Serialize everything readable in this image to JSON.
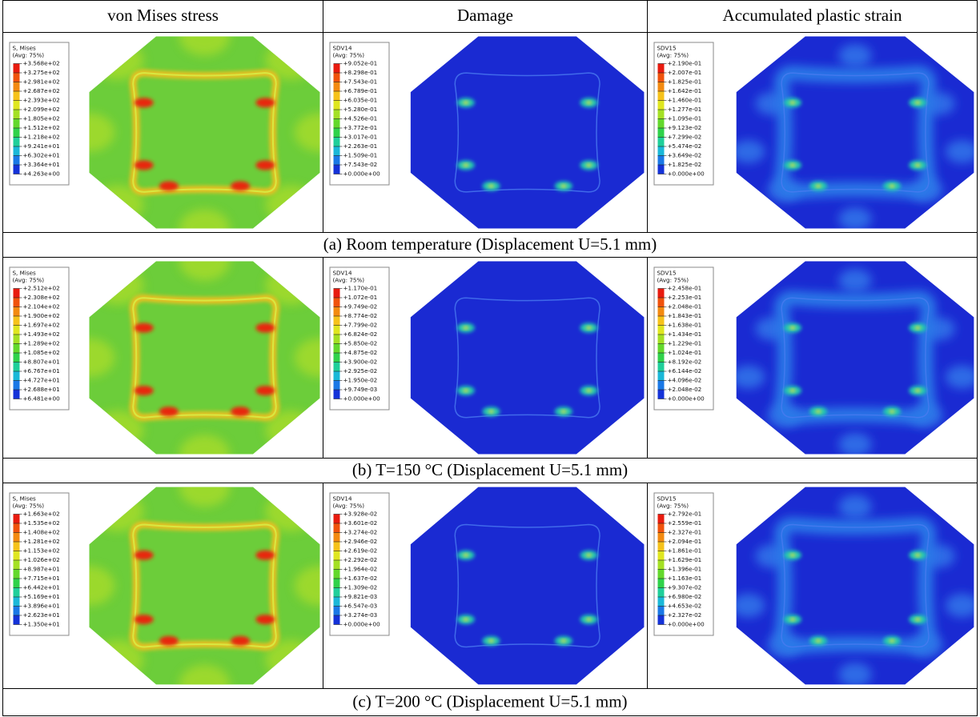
{
  "header": {
    "columns": [
      "von Mises stress",
      "Damage",
      "Accumulated plastic strain"
    ]
  },
  "rows": [
    {
      "panels": [
        {
          "variable": "S, Mises",
          "averaging": "(Avg: 75%)",
          "legend": [
            "+3.568e+02",
            "+3.275e+02",
            "+2.981e+02",
            "+2.687e+02",
            "+2.393e+02",
            "+2.099e+02",
            "+1.805e+02",
            "+1.512e+02",
            "+1.218e+02",
            "+9.241e+01",
            "+6.302e+01",
            "+3.364e+01",
            "+4.263e+00"
          ]
        },
        {
          "variable": "SDV14",
          "averaging": "(Avg: 75%)",
          "legend": [
            "+9.052e-01",
            "+8.298e-01",
            "+7.543e-01",
            "+6.789e-01",
            "+6.035e-01",
            "+5.280e-01",
            "+4.526e-01",
            "+3.772e-01",
            "+3.017e-01",
            "+2.263e-01",
            "+1.509e-01",
            "+7.543e-02",
            "+0.000e+00"
          ]
        },
        {
          "variable": "SDV15",
          "averaging": "(Avg: 75%)",
          "legend": [
            "+2.190e-01",
            "+2.007e-01",
            "+1.825e-01",
            "+1.642e-01",
            "+1.460e-01",
            "+1.277e-01",
            "+1.095e-01",
            "+9.123e-02",
            "+7.299e-02",
            "+5.474e-02",
            "+3.649e-02",
            "+1.825e-02",
            "+0.000e+00"
          ]
        }
      ],
      "caption": "(a) Room temperature (Displacement U=5.1 mm)"
    },
    {
      "panels": [
        {
          "variable": "S, Mises",
          "averaging": "(Avg: 75%)",
          "legend": [
            "+2.512e+02",
            "+2.308e+02",
            "+2.104e+02",
            "+1.900e+02",
            "+1.697e+02",
            "+1.493e+02",
            "+1.289e+02",
            "+1.085e+02",
            "+8.807e+01",
            "+6.767e+01",
            "+4.727e+01",
            "+2.688e+01",
            "+6.481e+00"
          ]
        },
        {
          "variable": "SDV14",
          "averaging": "(Avg: 75%)",
          "legend": [
            "+1.170e-01",
            "+1.072e-01",
            "+9.749e-02",
            "+8.774e-02",
            "+7.799e-02",
            "+6.824e-02",
            "+5.850e-02",
            "+4.875e-02",
            "+3.900e-02",
            "+2.925e-02",
            "+1.950e-02",
            "+9.749e-03",
            "+0.000e+00"
          ]
        },
        {
          "variable": "SDV15",
          "averaging": "(Avg: 75%)",
          "legend": [
            "+2.458e-01",
            "+2.253e-01",
            "+2.048e-01",
            "+1.843e-01",
            "+1.638e-01",
            "+1.434e-01",
            "+1.229e-01",
            "+1.024e-01",
            "+8.192e-02",
            "+6.144e-02",
            "+4.096e-02",
            "+2.048e-02",
            "+0.000e+00"
          ]
        }
      ],
      "caption": "(b) T=150 °C (Displacement U=5.1 mm)"
    },
    {
      "panels": [
        {
          "variable": "S, Mises",
          "averaging": "(Avg: 75%)",
          "legend": [
            "+1.663e+02",
            "+1.535e+02",
            "+1.408e+02",
            "+1.281e+02",
            "+1.153e+02",
            "+1.026e+02",
            "+8.987e+01",
            "+7.715e+01",
            "+6.442e+01",
            "+5.169e+01",
            "+3.896e+01",
            "+2.623e+01",
            "+1.350e+01"
          ]
        },
        {
          "variable": "SDV14",
          "averaging": "(Avg: 75%)",
          "legend": [
            "+3.928e-02",
            "+3.601e-02",
            "+3.274e-02",
            "+2.946e-02",
            "+2.619e-02",
            "+2.292e-02",
            "+1.964e-02",
            "+1.637e-02",
            "+1.309e-02",
            "+9.821e-03",
            "+6.547e-03",
            "+3.274e-03",
            "+0.000e+00"
          ]
        },
        {
          "variable": "SDV15",
          "averaging": "(Avg: 75%)",
          "legend": [
            "+2.792e-01",
            "+2.559e-01",
            "+2.327e-01",
            "+2.094e-01",
            "+1.861e-01",
            "+1.629e-01",
            "+1.396e-01",
            "+1.163e-01",
            "+9.307e-02",
            "+6.980e-02",
            "+4.653e-02",
            "+2.327e-02",
            "+0.000e+00"
          ]
        }
      ],
      "caption": "(c) T=200 °C (Displacement U=5.1 mm)"
    }
  ]
}
